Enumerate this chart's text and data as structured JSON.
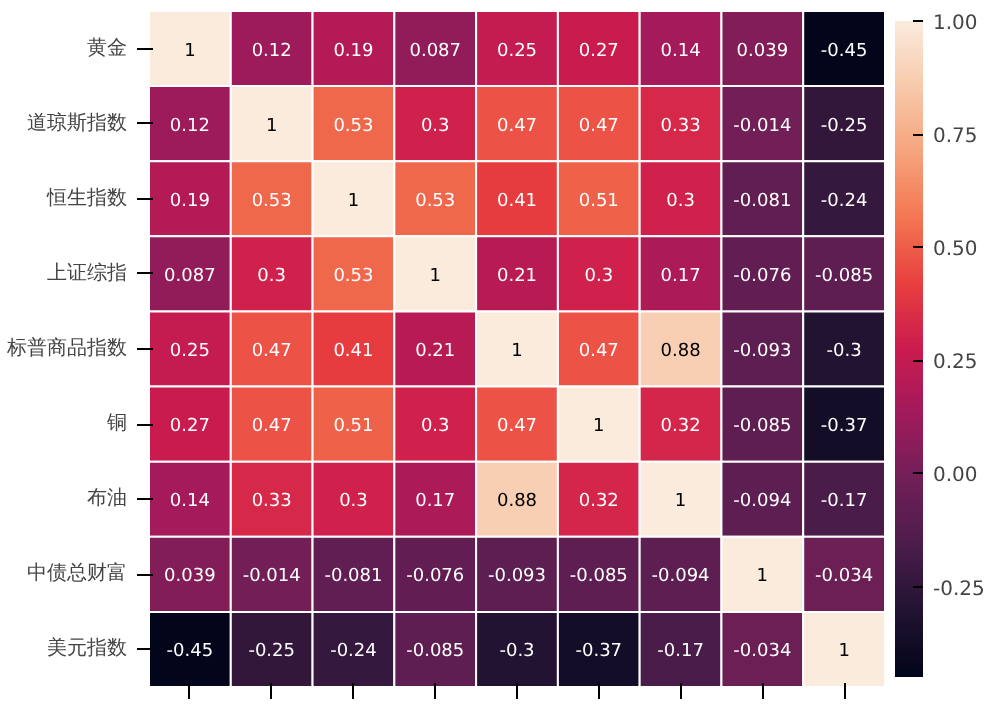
{
  "chart_data": {
    "type": "heatmap",
    "categories": [
      null,
      null,
      null,
      null,
      null,
      null,
      null,
      null,
      null
    ],
    "y_categories": [
      "黄金",
      "道琼斯指数",
      "恒生指数",
      "上证综指",
      "标普商品指数",
      "铜",
      "布油",
      "中债总财富",
      "美元指数"
    ],
    "cells": [
      [
        1,
        0.12,
        0.19,
        0.087,
        0.25,
        0.27,
        0.14,
        0.039,
        -0.45
      ],
      [
        0.12,
        1,
        0.53,
        0.3,
        0.47,
        0.47,
        0.33,
        -0.014,
        -0.25
      ],
      [
        0.19,
        0.53,
        1,
        0.53,
        0.41,
        0.51,
        0.3,
        -0.081,
        -0.24
      ],
      [
        0.087,
        0.3,
        0.53,
        1,
        0.21,
        0.3,
        0.17,
        -0.076,
        -0.085
      ],
      [
        0.25,
        0.47,
        0.41,
        0.21,
        1,
        0.47,
        0.88,
        -0.093,
        -0.3
      ],
      [
        0.27,
        0.47,
        0.51,
        0.3,
        0.47,
        1,
        0.32,
        -0.085,
        -0.37
      ],
      [
        0.14,
        0.33,
        0.3,
        0.17,
        0.88,
        0.32,
        1,
        -0.094,
        -0.17
      ],
      [
        0.039,
        -0.014,
        -0.081,
        -0.076,
        -0.093,
        -0.085,
        -0.094,
        1,
        -0.034
      ],
      [
        -0.45,
        -0.25,
        -0.24,
        -0.085,
        -0.3,
        -0.37,
        -0.17,
        -0.034,
        1
      ]
    ],
    "data_labels": true,
    "clim": [
      -0.45,
      1
    ],
    "cticks": [
      {
        "value": -0.25,
        "label": "-0.25"
      },
      {
        "value": 0,
        "label": "0.00"
      },
      {
        "value": 0.25,
        "label": "0.25"
      },
      {
        "value": 0.5,
        "label": "0.50"
      },
      {
        "value": 0.75,
        "label": "0.75"
      },
      {
        "value": 1,
        "label": "1.00"
      }
    ],
    "tick_labels": "y"
  }
}
